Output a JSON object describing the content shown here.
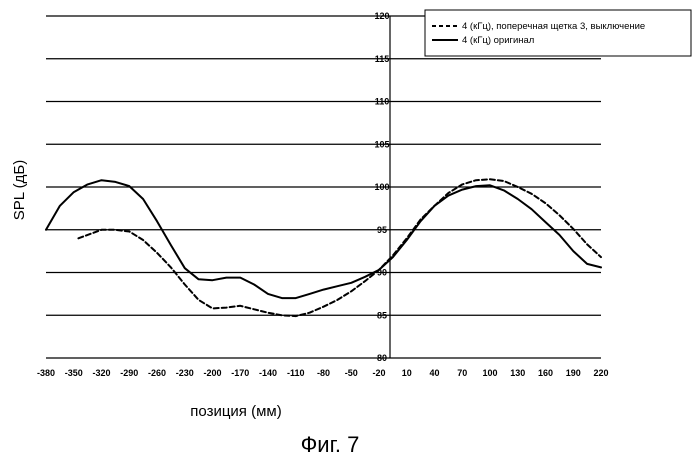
{
  "chart_data": {
    "type": "line",
    "ylabel": "SPL (дБ)",
    "xlabel": "позиция (мм)",
    "caption": "Фиг. 7",
    "x_ticks": [
      "-380",
      "-350",
      "-320",
      "-290",
      "-260",
      "-230",
      "-200",
      "-170",
      "-140",
      "-110",
      "-80",
      "-50",
      "-20",
      "10",
      "40",
      "70",
      "100",
      "130",
      "160",
      "190",
      "220"
    ],
    "y_ticks": [
      "80",
      "85",
      "90",
      "95",
      "100",
      "105",
      "110",
      "115",
      "120"
    ],
    "ylim": [
      80,
      120
    ],
    "xlim": [
      -380,
      220
    ],
    "grid": "horizontal",
    "legend_position": "top-right",
    "series": [
      {
        "name": "4 (кГц), поперечная щетка 3, выключение",
        "style": "dashed",
        "x": [
          -345,
          -330,
          -320,
          -305,
          -290,
          -275,
          -260,
          -245,
          -230,
          -215,
          -200,
          -185,
          -170,
          -155,
          -140,
          -125,
          -110,
          -95,
          -80,
          -65,
          -50,
          -35,
          -20,
          -5,
          10,
          25,
          40,
          55,
          70,
          85,
          100,
          115,
          130,
          145,
          160,
          175,
          190,
          205,
          220
        ],
        "y": [
          94,
          94.6,
          95,
          95,
          94.8,
          93.8,
          92.3,
          90.6,
          88.6,
          86.8,
          85.8,
          85.9,
          86.1,
          85.7,
          85.3,
          85.0,
          84.9,
          85.3,
          86.0,
          86.8,
          87.8,
          89.0,
          90.3,
          92.0,
          94.0,
          96.2,
          97.8,
          99.3,
          100.3,
          100.8,
          100.9,
          100.7,
          100.0,
          99.2,
          98.1,
          96.7,
          95.1,
          93.3,
          91.8
        ]
      },
      {
        "name": "4 (кГц) оригинал",
        "style": "solid",
        "x": [
          -380,
          -365,
          -350,
          -335,
          -320,
          -305,
          -290,
          -275,
          -260,
          -245,
          -230,
          -215,
          -200,
          -185,
          -170,
          -155,
          -140,
          -125,
          -110,
          -95,
          -80,
          -65,
          -50,
          -35,
          -20,
          -5,
          10,
          25,
          40,
          55,
          70,
          85,
          100,
          115,
          130,
          145,
          160,
          175,
          190,
          205,
          220
        ],
        "y": [
          95,
          97.8,
          99.4,
          100.3,
          100.8,
          100.6,
          100.1,
          98.6,
          96.0,
          93.2,
          90.5,
          89.2,
          89.1,
          89.4,
          89.4,
          88.6,
          87.5,
          87.0,
          87.0,
          87.5,
          88.0,
          88.4,
          88.8,
          89.5,
          90.3,
          91.8,
          93.8,
          96.0,
          97.8,
          99.0,
          99.7,
          100.1,
          100.2,
          99.6,
          98.6,
          97.4,
          95.9,
          94.4,
          92.5,
          91.0,
          90.6
        ]
      }
    ],
    "colors": {
      "line": "#000000",
      "grid": "#000000",
      "background": "#ffffff"
    }
  }
}
